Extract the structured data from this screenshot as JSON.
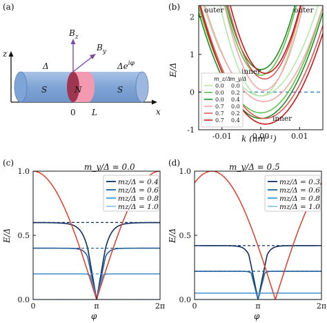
{
  "panel_a": {
    "label": "(a)",
    "axis_z": "z",
    "axis_x": "x",
    "vec_bz": "B",
    "vec_bz_sub": "z",
    "vec_by": "B",
    "vec_by_sub": "y",
    "delta_left": "Δ",
    "delta_right": "Δe",
    "delta_right_sup": "iφ",
    "region_s_left": "S",
    "region_n": "N",
    "region_s_right": "S",
    "pos_0": "0",
    "pos_l": "L",
    "colors": {
      "cylinder": "#8fb0dc",
      "n_dark": "#9e3650",
      "n_light": "#f39ab0"
    }
  },
  "chart_data": [
    {
      "id": "b",
      "panel_label": "(b)",
      "type": "line",
      "xlabel": "k (nm⁻¹)",
      "ylabel": "E/Δ",
      "xlim": [
        -0.016,
        0.016
      ],
      "ylim": [
        -1.0,
        2.3
      ],
      "xticks": [
        -0.01,
        0.0,
        0.01
      ],
      "xtick_labels": [
        "-0.01",
        "0.00",
        "0.01"
      ],
      "yticks": [
        -1,
        0,
        1,
        2
      ],
      "ytick_labels": [
        "-1",
        "0",
        "1",
        "2"
      ],
      "reference_line": {
        "y": 0,
        "style": "dashed",
        "color": "#2b7fc0"
      },
      "annotations": [
        "outer",
        "outer",
        "inner",
        "inner"
      ],
      "legend": {
        "position": "left",
        "headers": [
          "m_z/Δ",
          "m_y/Δ"
        ],
        "rows": [
          {
            "mz": "0.0",
            "my": "0.0",
            "color": "#b5e6a8"
          },
          {
            "mz": "0.0",
            "my": "0.2",
            "color": "#5cc24e"
          },
          {
            "mz": "0.0",
            "my": "0.4",
            "color": "#1f8c1f"
          },
          {
            "mz": "0.7",
            "my": "0.0",
            "color": "#f4a5a5"
          },
          {
            "mz": "0.7",
            "my": "0.2",
            "color": "#e25555"
          },
          {
            "mz": "0.7",
            "my": "0.4",
            "color": "#c81414"
          }
        ]
      },
      "series": [
        {
          "mz": 0.0,
          "my": 0.0,
          "color": "#b5e6a8",
          "outer_min": -0.1,
          "inner_min": -0.1,
          "outer_k0": 0.0,
          "inner_k0": 0.0
        },
        {
          "mz": 0.0,
          "my": 0.2,
          "color": "#5cc24e",
          "outer_min": 0.45,
          "inner_min": -0.55,
          "outer_k0": 0.0,
          "inner_k0": 0.0
        },
        {
          "mz": 0.0,
          "my": 0.4,
          "color": "#1f8c1f",
          "outer_min": 0.6,
          "inner_min": -0.7,
          "outer_k0": 0.0,
          "inner_k0": 0.0
        },
        {
          "mz": 0.7,
          "my": 0.0,
          "color": "#f4a5a5",
          "outer_min": 0.05,
          "inner_min": -0.25,
          "outer_k0": 0.0008,
          "inner_k0": 0.0008
        },
        {
          "mz": 0.7,
          "my": 0.2,
          "color": "#e25555",
          "outer_min": 0.35,
          "inner_min": -0.7,
          "outer_k0": 0.001,
          "inner_k0": 0.001
        },
        {
          "mz": 0.7,
          "my": 0.4,
          "color": "#c81414",
          "outer_min": 0.5,
          "inner_min": -0.85,
          "outer_k0": 0.0012,
          "inner_k0": 0.0012
        }
      ]
    },
    {
      "id": "c",
      "panel_label": "(c)",
      "type": "line",
      "title": "m_y/Δ = 0.0",
      "xlabel": "φ",
      "ylabel": "E/Δ",
      "xlim": [
        0,
        6.2832
      ],
      "ylim": [
        0,
        1.0
      ],
      "xtick_labels": [
        "0",
        "π",
        "2π"
      ],
      "ytick_labels": [
        "0.0",
        "0.5",
        "1.0"
      ],
      "legend": {
        "position": "top-right"
      },
      "series": [
        {
          "name": "m_z/Δ = 0.4",
          "mz": 0.4,
          "color": "#0d2c5e",
          "plateau": 0.6
        },
        {
          "name": "m_z/Δ = 0.6",
          "mz": 0.6,
          "color": "#1e5f9c",
          "plateau": 0.4
        },
        {
          "name": "m_z/Δ = 0.8",
          "mz": 0.8,
          "color": "#4c97d2",
          "plateau": 0.2
        },
        {
          "name": "m_z/Δ = 1.0",
          "mz": 1.0,
          "color": "#8fc4ea",
          "plateau": 0.0
        }
      ],
      "bulk_curve": {
        "description": "|cos(φ/2)|",
        "color": "#e03a2a"
      }
    },
    {
      "id": "d",
      "panel_label": "(d)",
      "type": "line",
      "title": "m_y/Δ = 0.5",
      "xlabel": "φ",
      "ylabel": "E/Δ",
      "xlim": [
        0,
        6.2832
      ],
      "ylim": [
        0,
        1.0
      ],
      "xtick_labels": [
        "0",
        "π",
        "2π"
      ],
      "ytick_labels": [
        "0.0",
        "0.5",
        "1.0"
      ],
      "legend": {
        "position": "top-right"
      },
      "series": [
        {
          "name": "m_z/Δ = 0.3",
          "mz": 0.3,
          "color": "#0d2c5e",
          "plateau": 0.42
        },
        {
          "name": "m_z/Δ = 0.6",
          "mz": 0.6,
          "color": "#1e5f9c",
          "plateau": 0.22
        },
        {
          "name": "m_z/Δ = 0.8",
          "mz": 0.8,
          "color": "#4c97d2",
          "plateau": 0.05
        },
        {
          "name": "m_z/Δ = 1.0",
          "mz": 1.0,
          "color": "#8fc4ea",
          "plateau": 0.0
        }
      ],
      "bulk_curve": {
        "description": "shifted |cos|",
        "color": "#e03a2a",
        "zero_at": 4.0
      }
    }
  ]
}
